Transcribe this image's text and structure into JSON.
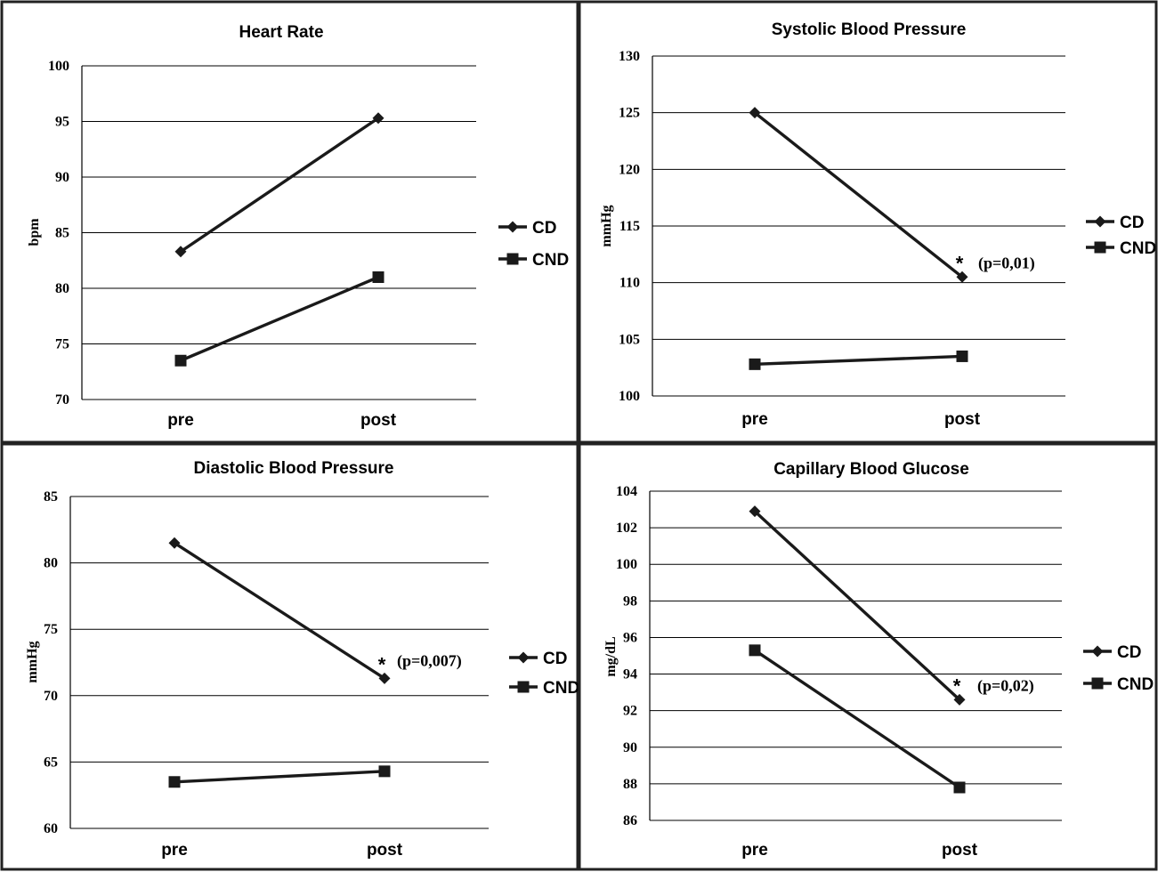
{
  "colors": {
    "line": "#1a1a1a",
    "grid": "#000000",
    "border": "#222222",
    "background": "#ffffff"
  },
  "chart_data": [
    {
      "type": "line",
      "title": "Heart Rate",
      "ylabel": "bpm",
      "xlabel": "",
      "categories": [
        "pre",
        "post"
      ],
      "ylim": [
        70,
        100
      ],
      "yticks": [
        70,
        75,
        80,
        85,
        90,
        95,
        100
      ],
      "grid": true,
      "legend_position": "right",
      "series": [
        {
          "name": "CD",
          "marker": "diamond",
          "values": [
            83.3,
            95.3
          ]
        },
        {
          "name": "CND",
          "marker": "square",
          "values": [
            73.5,
            81.0
          ]
        }
      ],
      "annotation": ""
    },
    {
      "type": "line",
      "title": "Systolic Blood Pressure",
      "ylabel": "mmHg",
      "xlabel": "",
      "categories": [
        "pre",
        "post"
      ],
      "ylim": [
        100,
        130
      ],
      "yticks": [
        100,
        105,
        110,
        115,
        120,
        125,
        130
      ],
      "grid": true,
      "legend_position": "right",
      "series": [
        {
          "name": "CD",
          "marker": "diamond",
          "values": [
            125.0,
            110.5
          ]
        },
        {
          "name": "CND",
          "marker": "square",
          "values": [
            102.8,
            103.5
          ]
        }
      ],
      "annotation": "(p=0,01)"
    },
    {
      "type": "line",
      "title": "Diastolic Blood Pressure",
      "ylabel": "mmHg",
      "xlabel": "",
      "categories": [
        "pre",
        "post"
      ],
      "ylim": [
        60,
        85
      ],
      "yticks": [
        60,
        65,
        70,
        75,
        80,
        85
      ],
      "grid": true,
      "legend_position": "right",
      "series": [
        {
          "name": "CD",
          "marker": "diamond",
          "values": [
            81.5,
            71.3
          ]
        },
        {
          "name": "CND",
          "marker": "square",
          "values": [
            63.5,
            64.3
          ]
        }
      ],
      "annotation": "(p=0,007)"
    },
    {
      "type": "line",
      "title": "Capillary Blood Glucose",
      "ylabel": "mg/dL",
      "xlabel": "",
      "categories": [
        "pre",
        "post"
      ],
      "ylim": [
        86,
        104
      ],
      "yticks": [
        86,
        88,
        90,
        92,
        94,
        96,
        98,
        100,
        102,
        104
      ],
      "grid": true,
      "legend_position": "right",
      "series": [
        {
          "name": "CD",
          "marker": "diamond",
          "values": [
            102.9,
            92.6
          ]
        },
        {
          "name": "CND",
          "marker": "square",
          "values": [
            95.3,
            87.8
          ]
        }
      ],
      "annotation": "(p=0,02)"
    }
  ]
}
